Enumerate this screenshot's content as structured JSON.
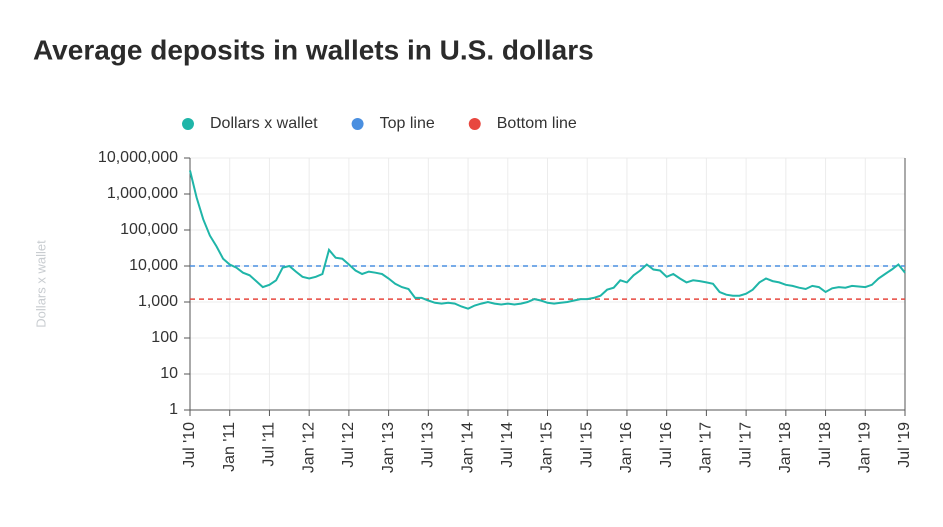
{
  "chart_data": {
    "type": "line",
    "title": "Average deposits in wallets in U.S. dollars",
    "y_label": "Dollars x wallet",
    "categories": [
      "Jul '10",
      null,
      null,
      null,
      null,
      null,
      "Jan '11",
      null,
      null,
      null,
      null,
      null,
      "Jul '11",
      null,
      null,
      null,
      null,
      null,
      "Jan '12",
      null,
      null,
      null,
      null,
      null,
      "Jul '12",
      null,
      null,
      null,
      null,
      null,
      "Jan '13",
      null,
      null,
      null,
      null,
      null,
      "Jul '13",
      null,
      null,
      null,
      null,
      null,
      "Jan '14",
      null,
      null,
      null,
      null,
      null,
      "Jul '14",
      null,
      null,
      null,
      null,
      null,
      "Jan '15",
      null,
      null,
      null,
      null,
      null,
      "Jul '15",
      null,
      null,
      null,
      null,
      null,
      "Jan '16",
      null,
      null,
      null,
      null,
      null,
      "Jul '16",
      null,
      null,
      null,
      null,
      null,
      "Jan '17",
      null,
      null,
      null,
      null,
      null,
      "Jul '17",
      null,
      null,
      null,
      null,
      null,
      "Jan '18",
      null,
      null,
      null,
      null,
      null,
      "Jul '18",
      null,
      null,
      null,
      null,
      null,
      "Jan '19",
      null,
      null,
      null,
      null,
      null,
      "Jul '19"
    ],
    "series": [
      {
        "name": "Dollars x wallet",
        "color": "#1fb5a8",
        "values": [
          4500000,
          800000,
          200000,
          70000,
          35000,
          16000,
          11000,
          9000,
          6500,
          5500,
          3800,
          2600,
          3000,
          4000,
          9000,
          10000,
          7000,
          5000,
          4500,
          5000,
          6000,
          28000,
          17000,
          16000,
          11000,
          7500,
          6000,
          7000,
          6500,
          6000,
          4500,
          3200,
          2600,
          2300,
          1300,
          1300,
          1100,
          950,
          900,
          950,
          900,
          750,
          650,
          800,
          900,
          1000,
          900,
          850,
          900,
          850,
          900,
          1000,
          1200,
          1100,
          950,
          900,
          950,
          1000,
          1100,
          1200,
          1200,
          1300,
          1500,
          2200,
          2500,
          4000,
          3500,
          5500,
          7500,
          11000,
          8000,
          7500,
          5000,
          6000,
          4500,
          3500,
          4000,
          3800,
          3500,
          3200,
          1900,
          1600,
          1500,
          1500,
          1700,
          2200,
          3500,
          4500,
          3800,
          3500,
          3000,
          2800,
          2500,
          2300,
          2800,
          2600,
          1900,
          2400,
          2600,
          2500,
          2800,
          2700,
          2600,
          3000,
          4500,
          6000,
          8000,
          11000,
          6500
        ]
      }
    ],
    "reference_lines": [
      {
        "name": "Top line",
        "color": "#4a8fe0",
        "value": 10000
      },
      {
        "name": "Bottom line",
        "color": "#e8473f",
        "value": 1200
      }
    ],
    "y_scale": "log",
    "ylim": [
      1,
      10000000
    ],
    "yticks": [
      1,
      10,
      100,
      {
        "value": 1000,
        "label": "1,000"
      },
      {
        "value": 10000,
        "label": "10,000"
      },
      {
        "value": 100000,
        "label": "100,000"
      },
      {
        "value": 1000000,
        "label": "1,000,000"
      },
      {
        "value": 10000000,
        "label": "10,000,000"
      }
    ],
    "grid": true
  }
}
